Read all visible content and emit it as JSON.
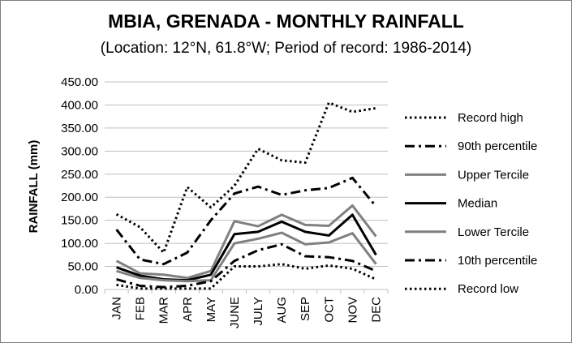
{
  "chart_data": {
    "type": "line",
    "title": "MBIA, GRENADA - MONTHLY RAINFALL",
    "subtitle": "(Location: 12°N, 61.8°W; Period of record: 1986-2014)",
    "ylabel": "RAINFALL (mm)",
    "xlabel": "",
    "ylim": [
      0,
      450
    ],
    "ytick_labels": [
      "0.00",
      "50.00",
      "100.00",
      "150.00",
      "200.00",
      "250.00",
      "300.00",
      "350.00",
      "400.00",
      "450.00"
    ],
    "categories": [
      "JAN",
      "FEB",
      "MAR",
      "APR",
      "MAY",
      "JUNE",
      "JULY",
      "AUG",
      "SEP",
      "OCT",
      "NOV",
      "DEC"
    ],
    "grid": true,
    "legend_position": "right",
    "series": [
      {
        "name": "Record high",
        "color": "#000000",
        "style": "dotted",
        "values": [
          163,
          135,
          80,
          222,
          178,
          225,
          305,
          280,
          275,
          405,
          385,
          393
        ]
      },
      {
        "name": "90th percentile",
        "color": "#000000",
        "style": "dashdot",
        "values": [
          130,
          65,
          55,
          80,
          150,
          208,
          223,
          205,
          215,
          220,
          242,
          180
        ]
      },
      {
        "name": "Upper Tercile",
        "color": "#808080",
        "style": "solid",
        "values": [
          62,
          35,
          32,
          25,
          40,
          148,
          137,
          162,
          140,
          138,
          182,
          115
        ]
      },
      {
        "name": "Median",
        "color": "#000000",
        "style": "solid",
        "values": [
          48,
          30,
          22,
          20,
          32,
          120,
          125,
          147,
          125,
          117,
          162,
          75
        ]
      },
      {
        "name": "Lower Tercile",
        "color": "#808080",
        "style": "solid",
        "values": [
          40,
          25,
          20,
          18,
          20,
          100,
          110,
          123,
          98,
          102,
          122,
          55
        ]
      },
      {
        "name": "10th percentile",
        "color": "#000000",
        "style": "dashdot",
        "values": [
          22,
          8,
          5,
          8,
          18,
          62,
          85,
          98,
          72,
          70,
          62,
          40
        ]
      },
      {
        "name": "Record low",
        "color": "#000000",
        "style": "dotted",
        "values": [
          10,
          2,
          2,
          2,
          2,
          50,
          50,
          55,
          45,
          52,
          45,
          22
        ]
      }
    ]
  }
}
